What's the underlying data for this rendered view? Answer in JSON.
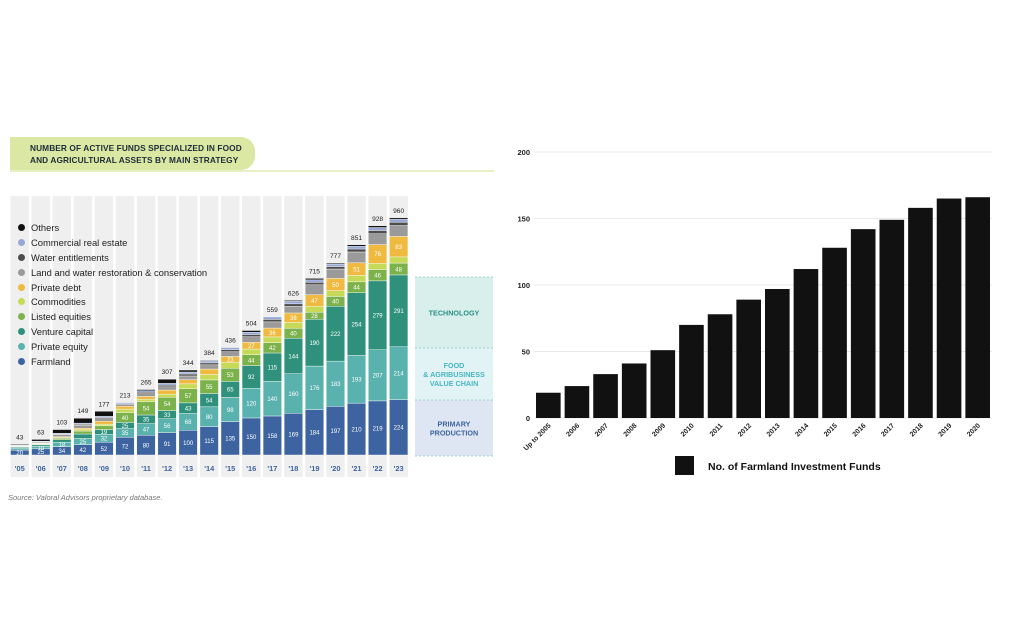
{
  "chart_data": [
    {
      "type": "bar",
      "stacked": true,
      "title": "NUMBER OF ACTIVE FUNDS SPECIALIZED IN FOOD AND AGRICULTURAL ASSETS BY MAIN STRATEGY",
      "title_lines": [
        "NUMBER OF ACTIVE FUNDS SPECIALIZED IN FOOD",
        "AND AGRICULTURAL ASSETS BY MAIN STRATEGY"
      ],
      "categories": [
        "'05",
        "'06",
        "'07",
        "'08",
        "'09",
        "'10",
        "'11",
        "'12",
        "'13",
        "'14",
        "'15",
        "'16",
        "'17",
        "'18",
        "'19",
        "'20",
        "'21",
        "'22",
        "'23"
      ],
      "totals": [
        43,
        63,
        103,
        149,
        177,
        213,
        265,
        307,
        344,
        384,
        436,
        504,
        559,
        626,
        715,
        777,
        851,
        928,
        960
      ],
      "series": [
        {
          "name": "Farmland",
          "color": "#3d64a0",
          "values": [
            20,
            25,
            34,
            42,
            52,
            72,
            80,
            91,
            100,
            115,
            135,
            150,
            158,
            169,
            184,
            197,
            210,
            219,
            224
          ]
        },
        {
          "name": "Private equity",
          "color": "#5ab2ae",
          "values": [
            8,
            10,
            18,
            25,
            32,
            35,
            47,
            56,
            68,
            80,
            98,
            120,
            140,
            160,
            176,
            183,
            193,
            207,
            214
          ]
        },
        {
          "name": "Venture capital",
          "color": "#2f917b",
          "values": [
            4,
            6,
            10,
            18,
            19,
            25,
            35,
            33,
            43,
            54,
            65,
            92,
            115,
            144,
            190,
            222,
            254,
            279,
            291
          ]
        },
        {
          "name": "Listed equities",
          "color": "#7cb24b",
          "values": [
            2,
            3,
            6,
            12,
            15,
            40,
            54,
            54,
            57,
            55,
            53,
            44,
            42,
            40,
            28,
            40,
            44,
            46,
            48
          ]
        },
        {
          "name": "Commodities",
          "color": "#c7da57",
          "values": [
            1,
            2,
            3,
            5,
            7,
            14,
            10,
            12,
            20,
            22,
            25,
            23,
            23,
            24,
            24,
            23,
            26,
            25,
            25
          ]
        },
        {
          "name": "Private debt",
          "color": "#f0b940",
          "values": [
            1,
            2,
            3,
            6,
            12,
            11,
            11,
            17,
            17,
            22,
            23,
            27,
            36,
            38,
            47,
            50,
            51,
            76,
            83
          ]
        },
        {
          "name": "Land and water restoration & conservation",
          "color": "#9a9a9a",
          "values": [
            2,
            4,
            8,
            13,
            10,
            7,
            11,
            13,
            15,
            17,
            19,
            23,
            25,
            27,
            40,
            38,
            44,
            44,
            44
          ]
        },
        {
          "name": "Water entitlements",
          "color": "#4d4d4d",
          "values": [
            1,
            2,
            3,
            4,
            5,
            3,
            6,
            7,
            8,
            8,
            8,
            9,
            10,
            10,
            10,
            10,
            12,
            13,
            13
          ]
        },
        {
          "name": "Commercial real estate",
          "color": "#95a8d6",
          "values": [
            1,
            2,
            3,
            4,
            5,
            5,
            6,
            7,
            8,
            8,
            8,
            9,
            10,
            10,
            10,
            10,
            11,
            12,
            12
          ]
        },
        {
          "name": "Others",
          "color": "#111111",
          "values": [
            3,
            7,
            15,
            20,
            20,
            1,
            5,
            17,
            8,
            3,
            2,
            7,
            0,
            4,
            6,
            4,
            6,
            7,
            6
          ]
        }
      ],
      "labeled": {
        "Farmland": "all",
        "Private equity": [
          1,
          2,
          3,
          4,
          5,
          6,
          7,
          8,
          9,
          10,
          11,
          12,
          13,
          14,
          15,
          16,
          17,
          18
        ],
        "Venture capital": [
          4,
          5,
          6,
          7,
          8,
          9,
          10,
          11,
          12,
          13,
          14,
          15,
          16,
          17,
          18
        ],
        "Listed equities": [
          5,
          6,
          7,
          8,
          9,
          10,
          11,
          12,
          13,
          14,
          15,
          16,
          17,
          18
        ],
        "Private debt": [
          10,
          11,
          12,
          13,
          14,
          15,
          16,
          17,
          18
        ]
      },
      "segment_bands": [
        {
          "label_lines": [
            "TECHNOLOGY"
          ],
          "color": "#d8efec",
          "text_color": "#2b8f86"
        },
        {
          "label_lines": [
            "FOOD",
            "& AGRIBUSINESS",
            "VALUE CHAIN"
          ],
          "color": "#e2f3f6",
          "text_color": "#49b6c2"
        },
        {
          "label_lines": [
            "PRIMARY",
            "PRODUCTION"
          ],
          "color": "#dfe6f3",
          "text_color": "#3d64a0"
        }
      ],
      "legend": [
        "Others",
        "Commercial real estate",
        "Water entitlements",
        "Land and water restoration & conservation",
        "Private debt",
        "Commodities",
        "Listed equities",
        "Venture capital",
        "Private equity",
        "Farmland"
      ],
      "legend_placement": "top-left",
      "source": "Source: Valoral Advisors proprietary database.",
      "accent_color": "#dbe8a3",
      "xlabel_color": "#3d64a0"
    },
    {
      "type": "bar",
      "categories": [
        "Up to 2005",
        "2006",
        "2007",
        "2008",
        "2009",
        "2010",
        "2011",
        "2012",
        "2013",
        "2014",
        "2015",
        "2016",
        "2017",
        "2018",
        "2019",
        "2020"
      ],
      "values": [
        19,
        24,
        33,
        41,
        51,
        70,
        78,
        89,
        97,
        112,
        128,
        142,
        149,
        158,
        165,
        166
      ],
      "ylim": [
        0,
        200
      ],
      "yticks": [
        0,
        50,
        100,
        150,
        200
      ],
      "grid": true,
      "legend": [
        "No. of Farmland Investment Funds"
      ],
      "legend_placement": "bottom-center",
      "bar_color": "#111111",
      "grid_color": "#e2e2e2"
    }
  ]
}
